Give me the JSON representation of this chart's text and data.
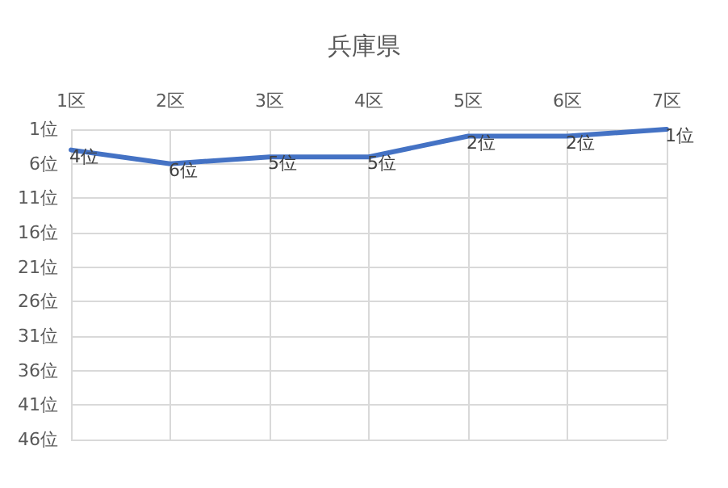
{
  "chart_data": {
    "type": "line",
    "title": "兵庫県",
    "categories": [
      "1区",
      "2区",
      "3区",
      "4区",
      "5区",
      "6区",
      "7区"
    ],
    "series": [
      {
        "color": "#4472c4",
        "values": [
          4,
          6,
          5,
          5,
          2,
          2,
          1
        ],
        "value_labels": [
          "4位",
          "6位",
          "5位",
          "5位",
          "2位",
          "2位",
          "1位"
        ]
      }
    ],
    "ylim": [
      46,
      1
    ],
    "yticks": [
      {
        "value": 1,
        "label": "1位"
      },
      {
        "value": 6,
        "label": "6位"
      },
      {
        "value": 11,
        "label": "11位"
      },
      {
        "value": 16,
        "label": "16位"
      },
      {
        "value": 21,
        "label": "21位"
      },
      {
        "value": 26,
        "label": "26位"
      },
      {
        "value": 31,
        "label": "31位"
      },
      {
        "value": 36,
        "label": "36位"
      },
      {
        "value": 41,
        "label": "41位"
      },
      {
        "value": 46,
        "label": "46位"
      }
    ],
    "grid": true,
    "marker": "none",
    "line_style": "solid"
  }
}
